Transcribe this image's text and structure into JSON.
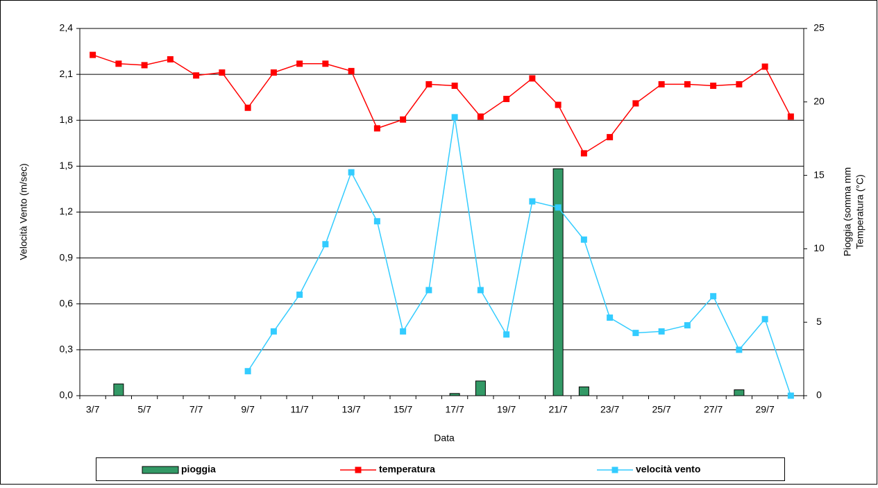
{
  "chart_data": {
    "type": "combo",
    "x_label": "Data",
    "y_label": "Velocità Vento (m/sec)",
    "y2_label": [
      "Pioggia (somma mm",
      "Temperatura (°C)"
    ],
    "categories": [
      "3/7",
      null,
      "5/7",
      null,
      "7/7",
      null,
      "9/7",
      null,
      "11/7",
      null,
      "13/7",
      null,
      "15/7",
      null,
      "17/7",
      null,
      "19/7",
      null,
      "21/7",
      null,
      "23/7",
      null,
      "25/7",
      null,
      "27/7",
      null,
      "29/7",
      null
    ],
    "ylim": [
      0,
      2.4
    ],
    "yticks": [
      {
        "value": 0,
        "label": "0,0"
      },
      {
        "value": 0.3,
        "label": "0,3"
      },
      {
        "value": 0.6,
        "label": "0,6"
      },
      {
        "value": 0.9,
        "label": "0,9"
      },
      {
        "value": 1.2,
        "label": "1,2"
      },
      {
        "value": 1.5,
        "label": "1,5"
      },
      {
        "value": 1.8,
        "label": "1,8"
      },
      {
        "value": 2.1,
        "label": "2,1"
      },
      {
        "value": 2.4,
        "label": "2,4"
      }
    ],
    "y2lim": [
      0,
      25
    ],
    "y2ticks": [
      0,
      5,
      10,
      15,
      20,
      25
    ],
    "grid": true,
    "legend": "bottom",
    "series": [
      {
        "name": "pioggia",
        "type": "bar",
        "axis": "y2",
        "color": "#339966",
        "values": [
          0,
          0.8,
          0,
          0,
          0,
          0,
          0,
          0,
          0,
          0,
          0,
          0,
          0,
          0,
          0.15,
          1.0,
          0,
          0,
          15.45,
          0.6,
          0,
          0,
          0,
          0,
          0,
          0.4,
          0,
          0
        ]
      },
      {
        "name": "temperatura",
        "type": "line",
        "axis": "y2",
        "color": "#ff0000",
        "values": [
          23.2,
          22.6,
          22.5,
          22.9,
          21.8,
          22.0,
          19.6,
          22.0,
          22.6,
          22.6,
          22.1,
          18.2,
          18.8,
          21.2,
          21.1,
          19.0,
          20.2,
          21.6,
          19.8,
          16.5,
          17.6,
          19.9,
          21.2,
          21.2,
          21.1,
          21.2,
          22.4,
          19.0
        ]
      },
      {
        "name": "velocità vento",
        "type": "line",
        "color": "#33ccff",
        "values": [
          null,
          null,
          null,
          null,
          null,
          null,
          0.16,
          0.42,
          0.66,
          0.99,
          1.46,
          1.14,
          0.42,
          0.69,
          1.82,
          0.69,
          0.4,
          1.27,
          1.23,
          1.02,
          0.51,
          0.41,
          0.42,
          0.46,
          0.65,
          0.3,
          0.5,
          0.0
        ]
      }
    ]
  }
}
